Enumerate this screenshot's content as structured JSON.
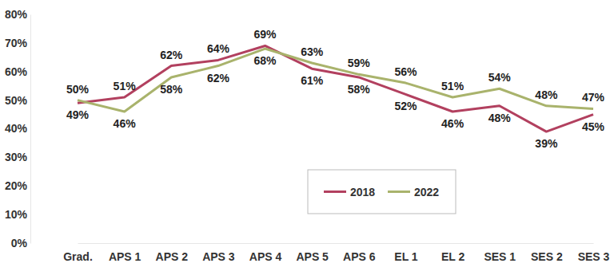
{
  "chart_data": {
    "type": "line",
    "categories": [
      "Grad.",
      "APS 1",
      "APS 2",
      "APS 3",
      "APS 4",
      "APS 5",
      "APS 6",
      "EL 1",
      "EL 2",
      "SES 1",
      "SES 2",
      "SES 3"
    ],
    "series": [
      {
        "name": "2018",
        "color": "#b2405f",
        "values": [
          49,
          51,
          62,
          64,
          69,
          61,
          58,
          52,
          46,
          48,
          39,
          45
        ],
        "value_labels": [
          "49%",
          "51%",
          "62%",
          "64%",
          "69%",
          "61%",
          "58%",
          "52%",
          "46%",
          "48%",
          "39%",
          "45%"
        ]
      },
      {
        "name": "2022",
        "color": "#a9b36c",
        "values": [
          50,
          46,
          58,
          62,
          68,
          63,
          59,
          56,
          51,
          54,
          48,
          47
        ],
        "value_labels": [
          "50%",
          "46%",
          "58%",
          "62%",
          "68%",
          "63%",
          "59%",
          "56%",
          "51%",
          "54%",
          "48%",
          "47%"
        ]
      }
    ],
    "ylim": [
      0,
      80
    ],
    "yticks": [
      {
        "value": 0,
        "label": "0%"
      },
      {
        "value": 10,
        "label": "10%"
      },
      {
        "value": 20,
        "label": "20%"
      },
      {
        "value": 30,
        "label": "30%"
      },
      {
        "value": 40,
        "label": "40%"
      },
      {
        "value": 50,
        "label": "50%"
      },
      {
        "value": 60,
        "label": "60%"
      },
      {
        "value": 70,
        "label": "70%"
      },
      {
        "value": 80,
        "label": "80%"
      }
    ],
    "grid": false,
    "legend": "bottom",
    "data_labels": true
  }
}
